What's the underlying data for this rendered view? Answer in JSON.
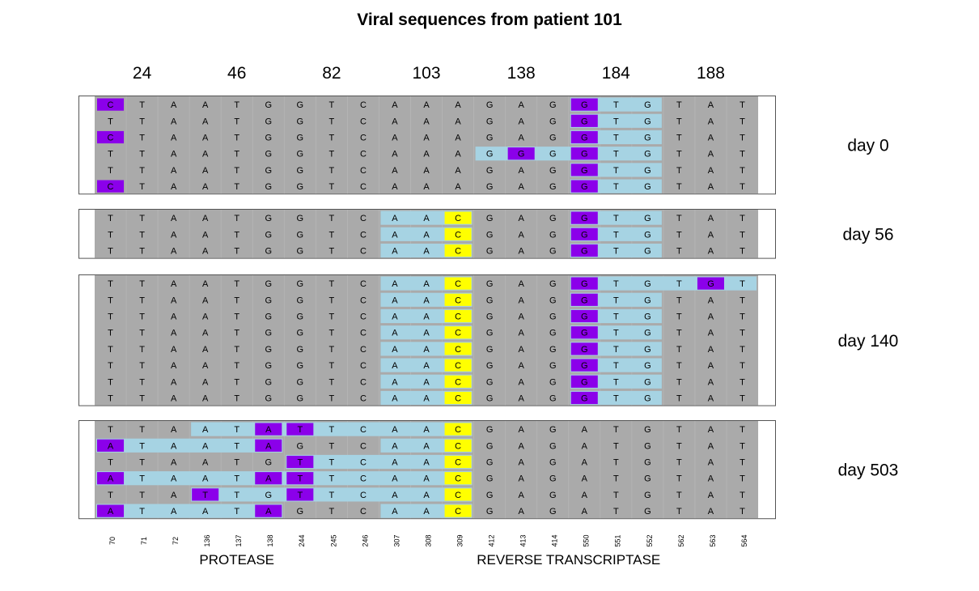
{
  "chart_data": {
    "type": "table",
    "title": "Viral sequences from patient 101",
    "positions": [
      "70",
      "71",
      "72",
      "136",
      "137",
      "138",
      "244",
      "245",
      "246",
      "307",
      "308",
      "309",
      "412",
      "413",
      "414",
      "550",
      "551",
      "552",
      "562",
      "563",
      "564"
    ],
    "codons": [
      {
        "label": "24",
        "span": [
          0,
          2
        ]
      },
      {
        "label": "46",
        "span": [
          3,
          5
        ]
      },
      {
        "label": "82",
        "span": [
          6,
          8
        ]
      },
      {
        "label": "103",
        "span": [
          9,
          11
        ]
      },
      {
        "label": "138",
        "span": [
          12,
          14
        ]
      },
      {
        "label": "184",
        "span": [
          15,
          17
        ]
      },
      {
        "label": "188",
        "span": [
          18,
          20
        ]
      }
    ],
    "regions": [
      {
        "label": "PROTEASE",
        "span": [
          0,
          8
        ]
      },
      {
        "label": "REVERSE TRANSCRIPTASE",
        "span": [
          9,
          20
        ]
      }
    ],
    "legend": {
      "same_as_reference": "#aaaaaa",
      "changed_codon": "#a6d3e3",
      "mutated_base": "#8b00ea",
      "mutated_base_day_trend": "#ffff00"
    },
    "groups": [
      {
        "label": "day 0",
        "sequences": [
          {
            "bases": "CTAATGGTCAAAGAGGTGTAT",
            "blue": [
              15,
              16,
              17
            ],
            "mark": [
              [
                0,
                "p"
              ],
              [
                15,
                "p"
              ]
            ]
          },
          {
            "bases": "TTAATGGTCAAAGAGGTGTAT",
            "blue": [
              15,
              16,
              17
            ],
            "mark": [
              [
                15,
                "p"
              ]
            ]
          },
          {
            "bases": "CTAATGGTCAAAGAGGTGTAT",
            "blue": [
              15,
              16,
              17
            ],
            "mark": [
              [
                0,
                "p"
              ],
              [
                15,
                "p"
              ]
            ]
          },
          {
            "bases": "TTAATGGTCAAAGGGGTGTAT",
            "blue": [
              12,
              13,
              14,
              15,
              16,
              17
            ],
            "mark": [
              [
                13,
                "p"
              ],
              [
                15,
                "p"
              ]
            ]
          },
          {
            "bases": "TTAATGGTCAAAGAGGTGTAT",
            "blue": [
              15,
              16,
              17
            ],
            "mark": [
              [
                15,
                "p"
              ]
            ]
          },
          {
            "bases": "CTAATGGTCAAAGAGGTGTAT",
            "blue": [
              15,
              16,
              17
            ],
            "mark": [
              [
                0,
                "p"
              ],
              [
                15,
                "p"
              ]
            ]
          }
        ]
      },
      {
        "label": "day 56",
        "sequences": [
          {
            "bases": "TTAATGGTCAACGAGGTGTAT",
            "blue": [
              9,
              10,
              11,
              15,
              16,
              17
            ],
            "mark": [
              [
                11,
                "y"
              ],
              [
                15,
                "p"
              ]
            ]
          },
          {
            "bases": "TTAATGGTCAACGAGGTGTAT",
            "blue": [
              9,
              10,
              11,
              15,
              16,
              17
            ],
            "mark": [
              [
                11,
                "y"
              ],
              [
                15,
                "p"
              ]
            ]
          },
          {
            "bases": "TTAATGGTCAACGAGGTGTAT",
            "blue": [
              9,
              10,
              11,
              15,
              16,
              17
            ],
            "mark": [
              [
                11,
                "y"
              ],
              [
                15,
                "p"
              ]
            ]
          }
        ]
      },
      {
        "label": "day 140",
        "sequences": [
          {
            "bases": "TTAATGGTCAACGAGGTGTGT",
            "blue": [
              9,
              10,
              11,
              15,
              16,
              17,
              18,
              19,
              20
            ],
            "mark": [
              [
                11,
                "y"
              ],
              [
                15,
                "p"
              ],
              [
                19,
                "p"
              ]
            ]
          },
          {
            "bases": "TTAATGGTCAACGAGGTGTAT",
            "blue": [
              9,
              10,
              11,
              15,
              16,
              17
            ],
            "mark": [
              [
                11,
                "y"
              ],
              [
                15,
                "p"
              ]
            ]
          },
          {
            "bases": "TTAATGGTCAACGAGGTGTAT",
            "blue": [
              9,
              10,
              11,
              15,
              16,
              17
            ],
            "mark": [
              [
                11,
                "y"
              ],
              [
                15,
                "p"
              ]
            ]
          },
          {
            "bases": "TTAATGGTCAACGAGGTGTAT",
            "blue": [
              9,
              10,
              11,
              15,
              16,
              17
            ],
            "mark": [
              [
                11,
                "y"
              ],
              [
                15,
                "p"
              ]
            ]
          },
          {
            "bases": "TTAATGGTCAACGAGGTGTAT",
            "blue": [
              9,
              10,
              11,
              15,
              16,
              17
            ],
            "mark": [
              [
                11,
                "y"
              ],
              [
                15,
                "p"
              ]
            ]
          },
          {
            "bases": "TTAATGGTCAACGAGGTGTAT",
            "blue": [
              9,
              10,
              11,
              15,
              16,
              17
            ],
            "mark": [
              [
                11,
                "y"
              ],
              [
                15,
                "p"
              ]
            ]
          },
          {
            "bases": "TTAATGGTCAACGAGGTGTAT",
            "blue": [
              9,
              10,
              11,
              15,
              16,
              17
            ],
            "mark": [
              [
                11,
                "y"
              ],
              [
                15,
                "p"
              ]
            ]
          },
          {
            "bases": "TTAATGGTCAACGAGGTGTAT",
            "blue": [
              9,
              10,
              11,
              15,
              16,
              17
            ],
            "mark": [
              [
                11,
                "y"
              ],
              [
                15,
                "p"
              ]
            ]
          }
        ]
      },
      {
        "label": "day 503",
        "sequences": [
          {
            "bases": "TTAATATTCAACGAGATGTAT",
            "blue": [
              3,
              4,
              5,
              6,
              7,
              8,
              9,
              10,
              11
            ],
            "mark": [
              [
                5,
                "p"
              ],
              [
                6,
                "p"
              ],
              [
                11,
                "y"
              ]
            ]
          },
          {
            "bases": "ATAATAGTCAACGAGATGTAT",
            "blue": [
              0,
              1,
              2,
              3,
              4,
              5,
              9,
              10,
              11
            ],
            "mark": [
              [
                0,
                "p"
              ],
              [
                5,
                "p"
              ],
              [
                11,
                "y"
              ]
            ]
          },
          {
            "bases": "TTAATGTTCAACGAGATGTAT",
            "blue": [
              6,
              7,
              8,
              9,
              10,
              11
            ],
            "mark": [
              [
                6,
                "p"
              ],
              [
                11,
                "y"
              ]
            ]
          },
          {
            "bases": "ATAATATTCAACGAGATGTAT",
            "blue": [
              0,
              1,
              2,
              3,
              4,
              5,
              6,
              7,
              8,
              9,
              10,
              11
            ],
            "mark": [
              [
                0,
                "p"
              ],
              [
                5,
                "p"
              ],
              [
                6,
                "p"
              ],
              [
                11,
                "y"
              ]
            ]
          },
          {
            "bases": "TTATTGTTCAACGAGATGTAT",
            "blue": [
              3,
              4,
              5,
              6,
              7,
              8,
              9,
              10,
              11
            ],
            "mark": [
              [
                3,
                "p"
              ],
              [
                6,
                "p"
              ],
              [
                11,
                "y"
              ]
            ]
          },
          {
            "bases": "ATAATAGTCAACGAGATGTAT",
            "blue": [
              0,
              1,
              2,
              3,
              4,
              5,
              9,
              10,
              11
            ],
            "mark": [
              [
                0,
                "p"
              ],
              [
                5,
                "p"
              ],
              [
                11,
                "y"
              ]
            ]
          }
        ]
      }
    ]
  }
}
